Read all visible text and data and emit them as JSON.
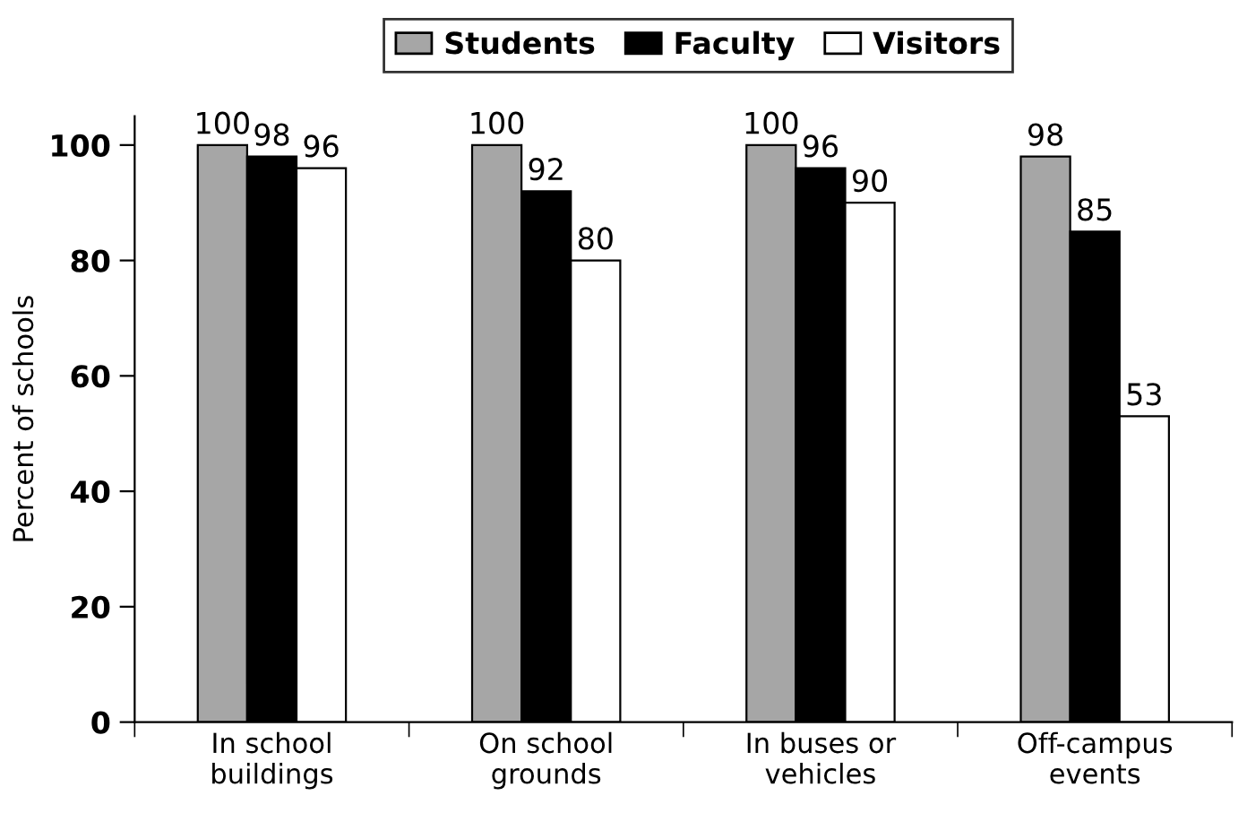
{
  "chart_data": {
    "type": "bar",
    "ylabel": "Percent of schools",
    "categories": [
      "In school\nbuildings",
      "On school\ngrounds",
      "In buses or\nvehicles",
      "Off-campus\nevents"
    ],
    "series": [
      {
        "name": "Students",
        "color": "#a6a6a6",
        "values": [
          100,
          100,
          100,
          98
        ]
      },
      {
        "name": "Faculty",
        "color": "#000000",
        "values": [
          98,
          92,
          96,
          85
        ]
      },
      {
        "name": "Visitors",
        "color": "#ffffff",
        "values": [
          96,
          80,
          90,
          53
        ]
      }
    ],
    "ylim": [
      0,
      105
    ],
    "yticks": [
      0,
      20,
      40,
      60,
      80,
      100
    ],
    "grid": false,
    "legend": "top",
    "data_labels": true
  }
}
